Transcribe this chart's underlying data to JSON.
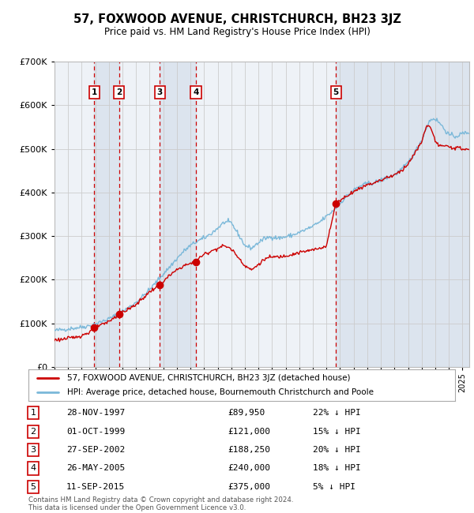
{
  "title": "57, FOXWOOD AVENUE, CHRISTCHURCH, BH23 3JZ",
  "subtitle": "Price paid vs. HM Land Registry's House Price Index (HPI)",
  "legend_line1": "57, FOXWOOD AVENUE, CHRISTCHURCH, BH23 3JZ (detached house)",
  "legend_line2": "HPI: Average price, detached house, Bournemouth Christchurch and Poole",
  "footer": "Contains HM Land Registry data © Crown copyright and database right 2024.\nThis data is licensed under the Open Government Licence v3.0.",
  "sales": [
    {
      "num": 1,
      "date": "28-NOV-1997",
      "price": 89950,
      "pct": "22% ↓ HPI",
      "year": 1997.91
    },
    {
      "num": 2,
      "date": "01-OCT-1999",
      "price": 121000,
      "pct": "15% ↓ HPI",
      "year": 1999.75
    },
    {
      "num": 3,
      "date": "27-SEP-2002",
      "price": 188250,
      "pct": "20% ↓ HPI",
      "year": 2002.74
    },
    {
      "num": 4,
      "date": "26-MAY-2005",
      "price": 240000,
      "pct": "18% ↓ HPI",
      "year": 2005.4
    },
    {
      "num": 5,
      "date": "11-SEP-2015",
      "price": 375000,
      "pct": "5% ↓ HPI",
      "year": 2015.69
    }
  ],
  "hpi_color": "#7ab8d9",
  "price_color": "#cc0000",
  "sale_marker_color": "#cc0000",
  "grid_color": "#cccccc",
  "plot_bg": "#eef2f7",
  "shade_color": "#d0dce8",
  "ylim": [
    0,
    700000
  ],
  "yticks": [
    0,
    100000,
    200000,
    300000,
    400000,
    500000,
    600000,
    700000
  ],
  "xmin": 1995.0,
  "xmax": 2025.5
}
